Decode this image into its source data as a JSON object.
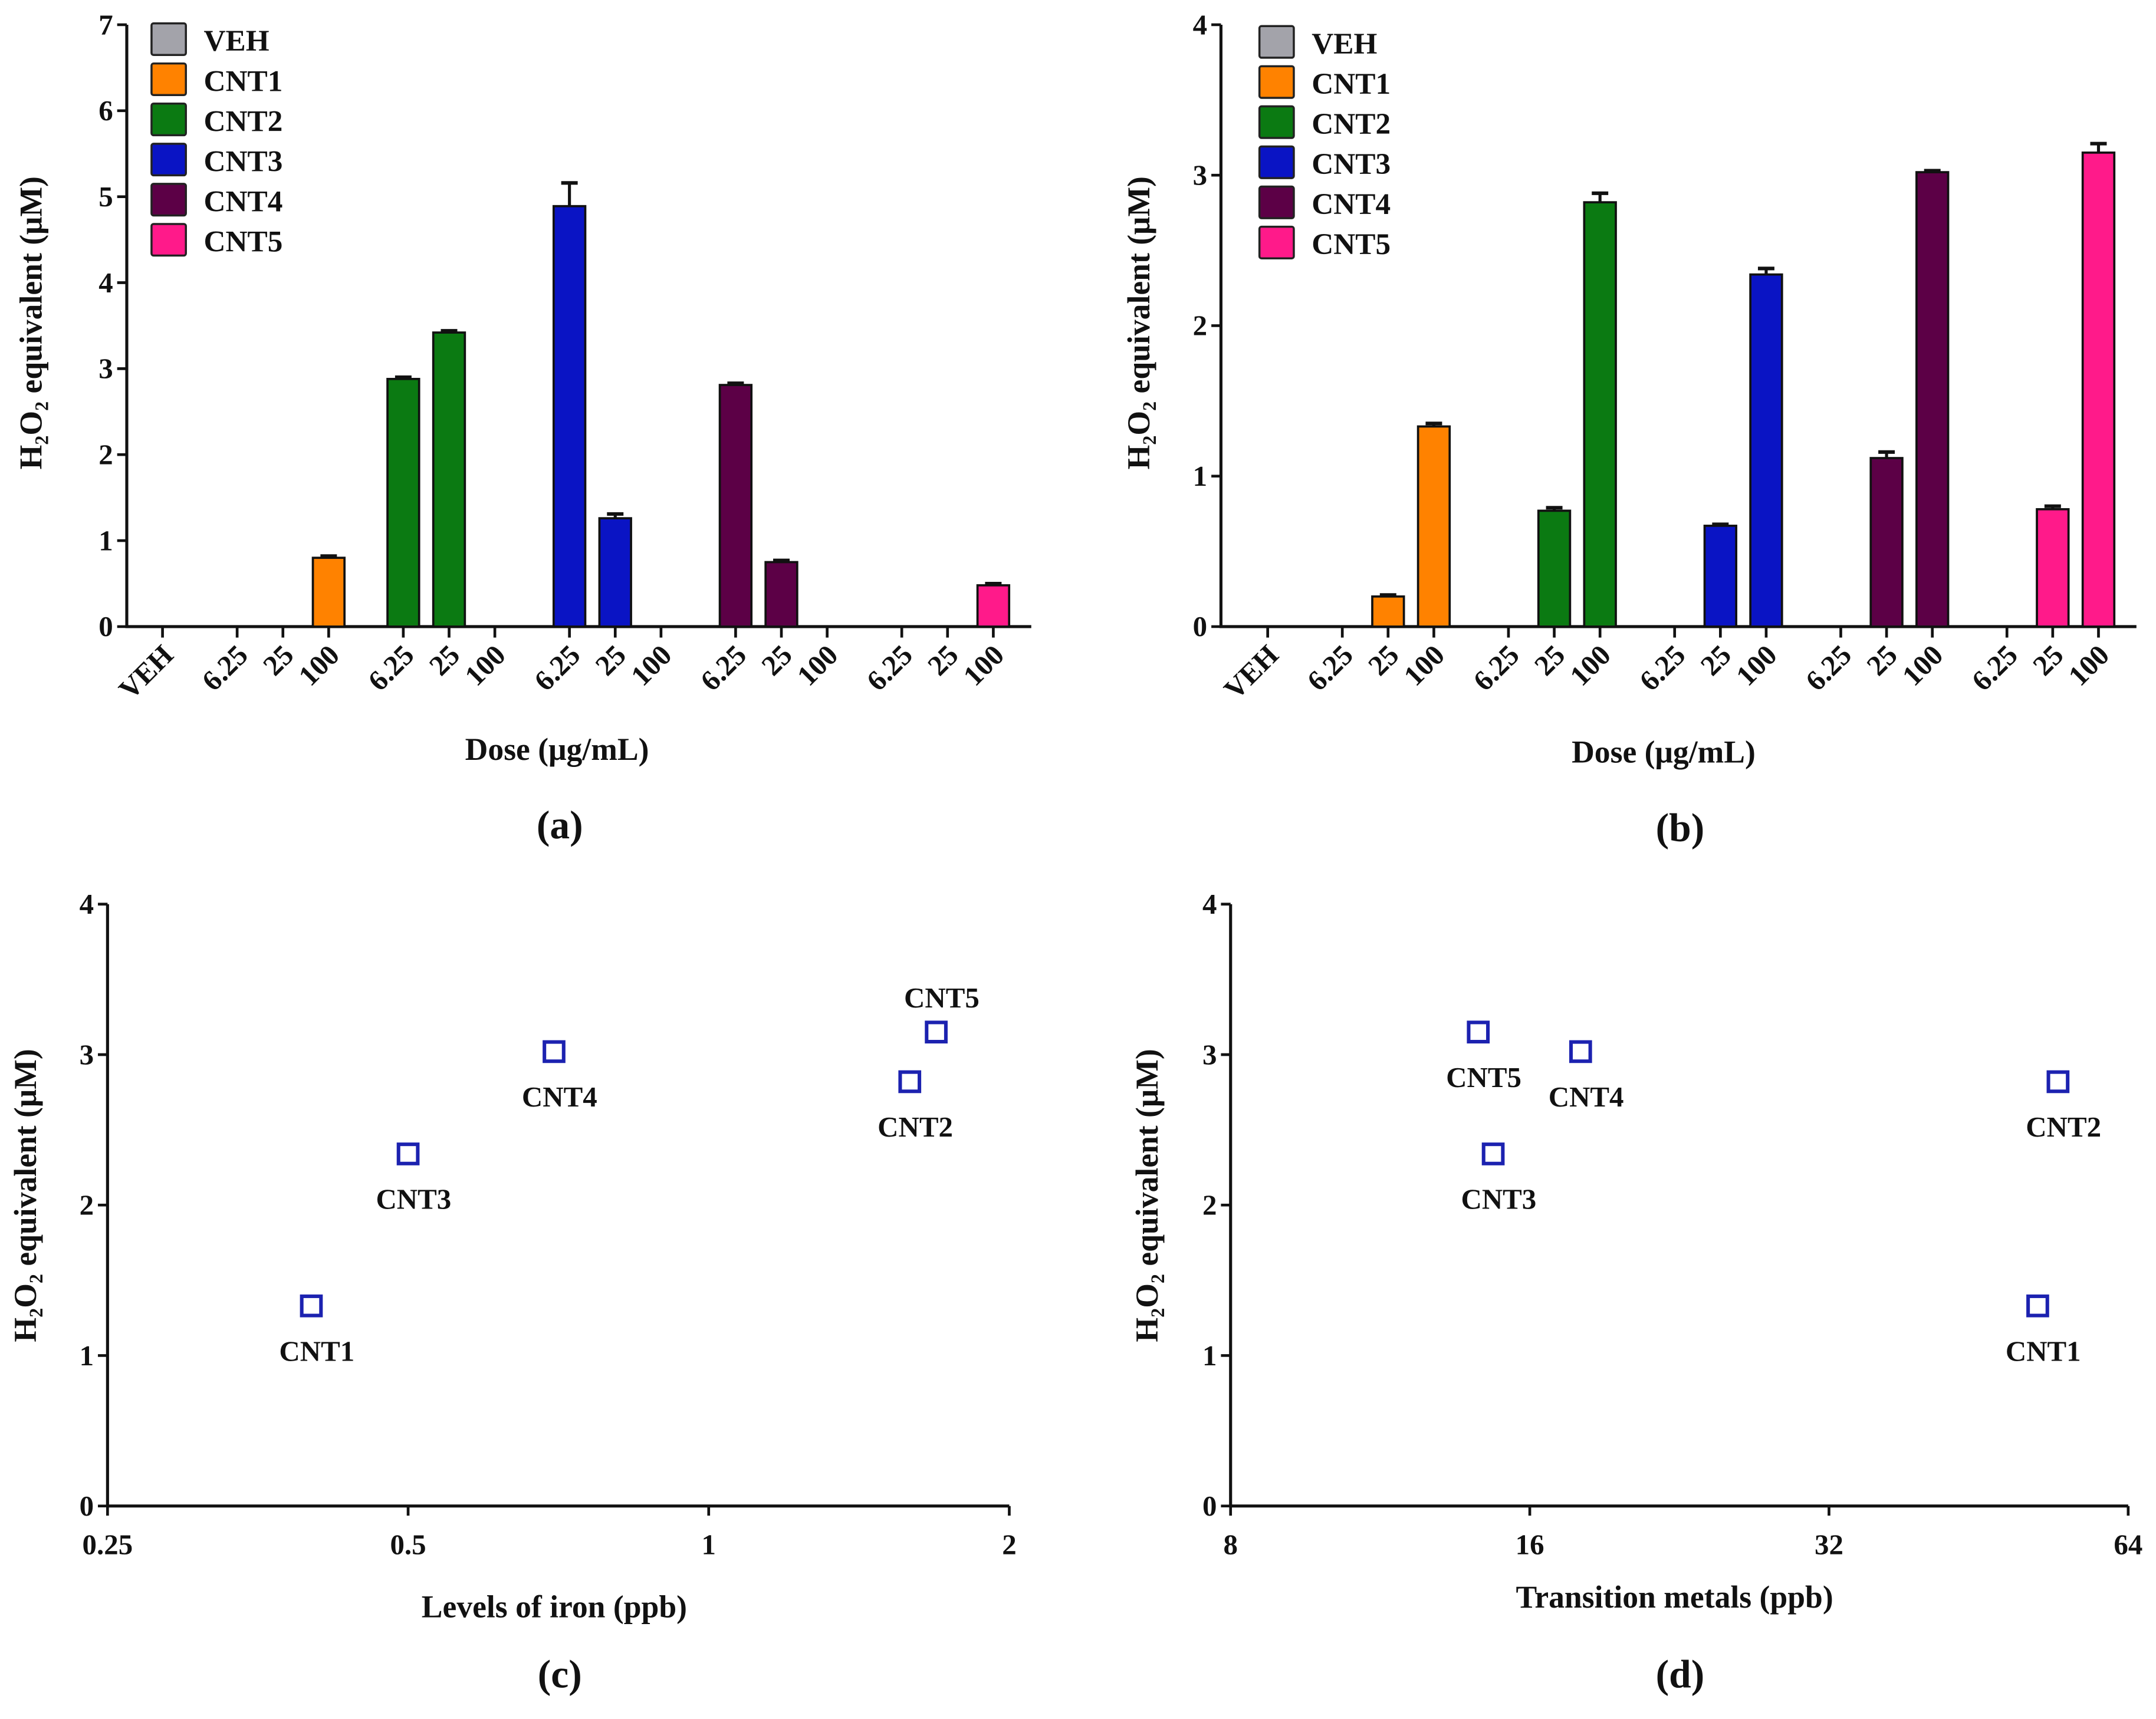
{
  "colors": {
    "VEH": "#a3a3aa",
    "CNT1": "#ff8200",
    "CNT2": "#0b7a12",
    "CNT3": "#0a14c4",
    "CNT4": "#5c0046",
    "CNT5": "#ff1a8a",
    "marker": "#1c22b0"
  },
  "chart_data": [
    {
      "type": "bar",
      "panel_label": "(a)",
      "xlabel": "Dose (μg/mL)",
      "ylabel": "H₂O₂ equivalent (μM)",
      "ylim": [
        0,
        7
      ],
      "yticks": [
        "0",
        "1",
        "2",
        "3",
        "4",
        "5",
        "6",
        "7"
      ],
      "legend": [
        "VEH",
        "CNT1",
        "CNT2",
        "CNT3",
        "CNT4",
        "CNT5"
      ],
      "legend_position": "top-left",
      "vehicle": {
        "label": "VEH",
        "value": 0,
        "err": 0
      },
      "doses": [
        "6.25",
        "25",
        "100"
      ],
      "series": [
        {
          "name": "CNT1",
          "values": [
            0,
            0,
            0.8
          ],
          "err": [
            0,
            0,
            0.02
          ]
        },
        {
          "name": "CNT2",
          "values": [
            2.88,
            3.42,
            0
          ],
          "err": [
            0.02,
            0.02,
            0
          ]
        },
        {
          "name": "CNT3",
          "values": [
            4.89,
            1.26,
            0
          ],
          "err": [
            0.27,
            0.05,
            0
          ]
        },
        {
          "name": "CNT4",
          "values": [
            2.81,
            0.75,
            0
          ],
          "err": [
            0.02,
            0.02,
            0
          ]
        },
        {
          "name": "CNT5",
          "values": [
            0,
            0,
            0.48
          ],
          "err": [
            0,
            0,
            0.02
          ]
        }
      ]
    },
    {
      "type": "bar",
      "panel_label": "(b)",
      "xlabel": "Dose (μg/mL)",
      "ylabel": "H₂O₂ equivalent (μM)",
      "ylim": [
        0,
        4
      ],
      "yticks": [
        "0",
        "1",
        "2",
        "3",
        "4"
      ],
      "legend": [
        "VEH",
        "CNT1",
        "CNT2",
        "CNT3",
        "CNT4",
        "CNT5"
      ],
      "legend_position": "top-left",
      "vehicle": {
        "label": "VEH",
        "value": 0,
        "err": 0
      },
      "doses": [
        "6.25",
        "25",
        "100"
      ],
      "series": [
        {
          "name": "CNT1",
          "values": [
            0,
            0.2,
            1.33
          ],
          "err": [
            0,
            0.01,
            0.02
          ]
        },
        {
          "name": "CNT2",
          "values": [
            0,
            0.77,
            2.82
          ],
          "err": [
            0,
            0.02,
            0.06
          ]
        },
        {
          "name": "CNT3",
          "values": [
            0,
            0.67,
            2.34
          ],
          "err": [
            0,
            0.01,
            0.04
          ]
        },
        {
          "name": "CNT4",
          "values": [
            0,
            1.12,
            3.02
          ],
          "err": [
            0,
            0.04,
            0.01
          ]
        },
        {
          "name": "CNT5",
          "values": [
            0,
            0.78,
            3.15
          ],
          "err": [
            0,
            0.02,
            0.06
          ]
        }
      ]
    },
    {
      "type": "scatter",
      "panel_label": "(c)",
      "xlabel": "Levels of iron (ppb)",
      "ylabel": "H₂O₂ equivalent (μM)",
      "xscale": "log2",
      "xlim": [
        0.25,
        2
      ],
      "xticks": [
        "0.25",
        "0.5",
        "1",
        "2"
      ],
      "ylim": [
        0,
        4
      ],
      "yticks": [
        "0",
        "1",
        "2",
        "3",
        "4"
      ],
      "points": [
        {
          "label": "CNT1",
          "x": 0.4,
          "y": 1.33,
          "label_pos": "below"
        },
        {
          "label": "CNT3",
          "x": 0.5,
          "y": 2.34,
          "label_pos": "below"
        },
        {
          "label": "CNT4",
          "x": 0.7,
          "y": 3.02,
          "label_pos": "below"
        },
        {
          "label": "CNT2",
          "x": 1.59,
          "y": 2.82,
          "label_pos": "below"
        },
        {
          "label": "CNT5",
          "x": 1.69,
          "y": 3.15,
          "label_pos": "above"
        }
      ]
    },
    {
      "type": "scatter",
      "panel_label": "(d)",
      "xlabel": "Transition metals (ppb)",
      "ylabel": "H₂O₂ equivalent (μM)",
      "xscale": "log2",
      "xlim": [
        8,
        64
      ],
      "xticks": [
        "8",
        "16",
        "32",
        "64"
      ],
      "ylim": [
        0,
        4
      ],
      "yticks": [
        "0",
        "1",
        "2",
        "3",
        "4"
      ],
      "points": [
        {
          "label": "CNT5",
          "x": 14.2,
          "y": 3.15,
          "label_pos": "below"
        },
        {
          "label": "CNT3",
          "x": 14.7,
          "y": 2.34,
          "label_pos": "below"
        },
        {
          "label": "CNT4",
          "x": 18.0,
          "y": 3.02,
          "label_pos": "below"
        },
        {
          "label": "CNT1",
          "x": 51.9,
          "y": 1.33,
          "label_pos": "below"
        },
        {
          "label": "CNT2",
          "x": 54.4,
          "y": 2.82,
          "label_pos": "below"
        }
      ]
    }
  ]
}
